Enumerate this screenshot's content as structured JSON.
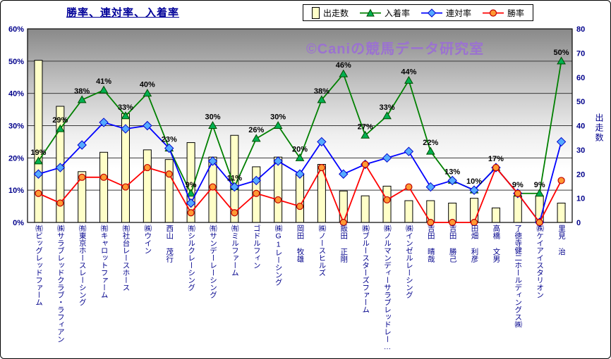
{
  "title": "勝率、連対率、入着率",
  "watermark": "©Caniの競馬データ研究室",
  "chart_data": {
    "type": "combo-bar-line",
    "categories": [
      "㈲ビッグレッドファーム",
      "㈱サラブレッドクラブ・ラフィアン",
      "㈲東京ホースレーシング",
      "㈲キャロットファーム",
      "㈲社台レースホース",
      "㈱ウイン",
      "西山 茂行",
      "㈲シルクレーシング",
      "㈲サンデーレーシング",
      "㈲ミルファーム",
      "ゴドルフィン",
      "㈱G1レーシング",
      "岡田 牧雄",
      "㈱ノースヒルズ",
      "飯田 正剛",
      "㈱ブルースターズファーム",
      "㈱ノルマンディーサラブレッドレー…",
      "㈱インゼルレーシング",
      "吉田 晴哉",
      "吉田 勝己",
      "田畑 利彦",
      "高橋 文男",
      "了徳寺健二ホールディングス㈱",
      "㈱ケイアイスタリオン",
      "里見 治"
    ],
    "series": [
      {
        "name": "出走数",
        "type": "bar",
        "axis": "right",
        "color": "#FFFFC8",
        "stroke": "#000000",
        "values": [
          67,
          48,
          21,
          29,
          45,
          30,
          26,
          33,
          27,
          36,
          23,
          27,
          20,
          24,
          13,
          11,
          15,
          9,
          9,
          8,
          10,
          6,
          11,
          11,
          8
        ]
      },
      {
        "name": "入着率",
        "type": "line",
        "axis": "left",
        "marker": "triangle",
        "color": "#008000",
        "marker_fill": "#00B050",
        "marker_stroke": "#004D00",
        "values": [
          19,
          29,
          38,
          41,
          33,
          40,
          23,
          9,
          30,
          11,
          26,
          30,
          20,
          38,
          46,
          27,
          33,
          44,
          22,
          13,
          10,
          17,
          9,
          9,
          50
        ],
        "point_labels": [
          "19%",
          "29%",
          "38%",
          "41%",
          "33%",
          "40%",
          "23%",
          "9%",
          "30%",
          "11%",
          "26%",
          "30%",
          "20%",
          "38%",
          "46%",
          "27%",
          "33%",
          "44%",
          "22%",
          "13%",
          "10%",
          "17%",
          "9%",
          "9%",
          "50%"
        ]
      },
      {
        "name": "連対率",
        "type": "line",
        "axis": "left",
        "marker": "diamond",
        "color": "#0000FF",
        "marker_fill": "#55AAFF",
        "marker_stroke": "#0000CC",
        "values": [
          15,
          17,
          24,
          31,
          29,
          30,
          23,
          6,
          19,
          11,
          13,
          19,
          15,
          25,
          15,
          18,
          20,
          22,
          11,
          13,
          10,
          17,
          9,
          0,
          25
        ]
      },
      {
        "name": "勝率",
        "type": "line",
        "axis": "left",
        "marker": "circle",
        "color": "#FF0000",
        "marker_fill": "#FF9933",
        "marker_stroke": "#C00000",
        "values": [
          9,
          6,
          14,
          14,
          11,
          17,
          15,
          3,
          11,
          3,
          9,
          7,
          5,
          17,
          0,
          18,
          7,
          11,
          0,
          0,
          0,
          17,
          9,
          0,
          13
        ]
      }
    ],
    "left_axis": {
      "min": 0,
      "max": 60,
      "step": 10,
      "ticks": [
        "0%",
        "10%",
        "20%",
        "30%",
        "40%",
        "50%",
        "60%"
      ]
    },
    "right_axis": {
      "min": 0,
      "max": 80,
      "step": 10,
      "title": "出走数",
      "ticks": [
        "0",
        "10",
        "20",
        "30",
        "40",
        "50",
        "60",
        "70",
        "80"
      ]
    },
    "grid": true,
    "legend_position": "top"
  }
}
